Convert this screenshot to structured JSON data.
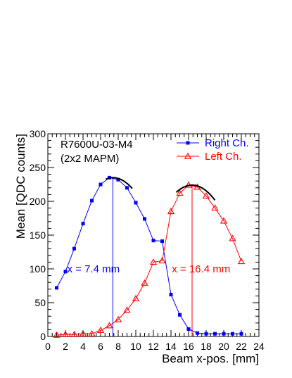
{
  "chart_data": {
    "type": "line",
    "title": "",
    "xlabel": "Beam x-pos. [mm]",
    "ylabel": "Mean [QDC counts]",
    "xlim": [
      0,
      24
    ],
    "ylim": [
      0,
      300
    ],
    "xticks": [
      0,
      2,
      4,
      6,
      8,
      10,
      12,
      14,
      16,
      18,
      20,
      22,
      24
    ],
    "yticks": [
      0,
      50,
      100,
      150,
      200,
      250,
      300
    ],
    "grid": false,
    "legend_position": "top-right",
    "annotations": [
      "R7600U-03-M4",
      "(2x2 MAPM)"
    ],
    "series": [
      {
        "name": "Right Ch.",
        "color": "#0000ff",
        "marker": "square",
        "x": [
          1,
          2,
          3,
          4,
          5,
          6,
          7,
          8,
          9,
          10,
          11,
          12,
          13,
          14,
          15,
          16,
          17,
          18,
          19,
          20,
          21,
          22
        ],
        "y": [
          72,
          96,
          130,
          167,
          201,
          225,
          235,
          232,
          220,
          198,
          174,
          142,
          141,
          62,
          32,
          11,
          5,
          4,
          4,
          4,
          4,
          4
        ]
      },
      {
        "name": "Left Ch.",
        "color": "#ff0000",
        "marker": "open-triangle",
        "x": [
          1,
          2,
          3,
          4,
          5,
          6,
          7,
          8,
          9,
          10,
          11,
          12,
          13,
          14,
          15,
          16,
          17,
          18,
          19,
          20,
          21,
          22
        ],
        "y": [
          2,
          3,
          3,
          4,
          4,
          9,
          16,
          25,
          39,
          56,
          79,
          110,
          112,
          185,
          212,
          224,
          221,
          208,
          190,
          171,
          145,
          111
        ]
      }
    ],
    "fits": [
      {
        "color": "#000000",
        "x_range": [
          6.6,
          9.6
        ],
        "peak_x": 7.4,
        "peak_y": 235,
        "curvature": 3.3
      },
      {
        "color": "#000000",
        "x_range": [
          14.6,
          19.0
        ],
        "peak_x": 16.4,
        "peak_y": 224,
        "curvature": 3.3
      }
    ],
    "peak_markers": [
      {
        "x": 7.4,
        "label": "x = 7.4 mm",
        "label_x": 2.2,
        "label_y": 100,
        "color": "#0000ff"
      },
      {
        "x": 16.4,
        "label": "x = 16.4 mm",
        "label_x": 14.1,
        "label_y": 100,
        "color": "#ff0000"
      }
    ]
  }
}
